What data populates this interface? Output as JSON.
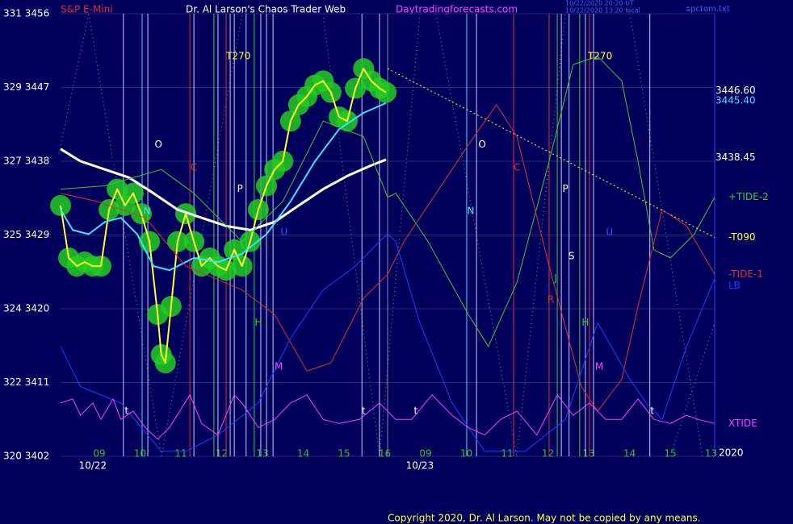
{
  "chart_data": {
    "type": "line",
    "title": "Dr. Al Larson's Chaos Trader Web",
    "symbol": "S&P E-Mini",
    "site": "Daytradingforecasts.com",
    "stamp": [
      "10/22/2020 20:20 UT",
      "10/22/2020 13:20 local"
    ],
    "file": "spctom.txt",
    "year": "2020",
    "copyright": "Copyright 2020, Dr. Al Larson. May not be copied by any means.",
    "background": "#00005c",
    "grid": true,
    "xlim": [
      0.05,
      16.09
    ],
    "ylim": [
      3402,
      3456
    ],
    "yticks": [
      {
        "value": 3456,
        "label": "331 3456"
      },
      {
        "value": 3447,
        "label": "329 3447"
      },
      {
        "value": 3438,
        "label": "327 3438"
      },
      {
        "value": 3429,
        "label": "325 3429"
      },
      {
        "value": 3420,
        "label": "324 3420"
      },
      {
        "value": 3411,
        "label": "322 3411"
      },
      {
        "value": 3402,
        "label": "320 3402"
      }
    ],
    "xticks": [
      {
        "value": 1,
        "label": "09"
      },
      {
        "value": 2,
        "label": "10"
      },
      {
        "value": 3,
        "label": "11"
      },
      {
        "value": 4,
        "label": "12"
      },
      {
        "value": 5,
        "label": "13"
      },
      {
        "value": 6,
        "label": "14"
      },
      {
        "value": 7,
        "label": "15"
      },
      {
        "value": 8,
        "label": "16"
      },
      {
        "value": 9,
        "label": "09"
      },
      {
        "value": 10,
        "label": "10"
      },
      {
        "value": 11,
        "label": "11"
      },
      {
        "value": 12,
        "label": "12"
      },
      {
        "value": 13,
        "label": "13"
      },
      {
        "value": 14,
        "label": "14"
      },
      {
        "value": 15,
        "label": "15"
      },
      {
        "value": 16,
        "label": "13"
      }
    ],
    "dates": [
      {
        "label": "10/22",
        "x": 0.84
      },
      {
        "label": "10/23",
        "x": 8.86
      }
    ],
    "price_labels": [
      {
        "value": 3446.6,
        "label": "3446.60",
        "color": "#ffffff"
      },
      {
        "value": 3445.4,
        "label": "3445.40",
        "color": "#40e0ff"
      },
      {
        "value": 3438.45,
        "label": "3438.45",
        "color": "#ffffff"
      }
    ],
    "vlines": [
      {
        "x": 1.59,
        "color": "#c8c8ff"
      },
      {
        "x": 2.05,
        "color": "#40e0ff"
      },
      {
        "x": 2.19,
        "color": "#c8c8ff"
      },
      {
        "x": 3.22,
        "color": "#e03030"
      },
      {
        "x": 3.32,
        "color": "#c8c8ff"
      },
      {
        "x": 3.81,
        "color": "#30d030"
      },
      {
        "x": 3.91,
        "color": "#c8c8ff"
      },
      {
        "x": 4.11,
        "color": "#e03030"
      },
      {
        "x": 4.21,
        "color": "#c8c8ff"
      },
      {
        "x": 4.31,
        "color": "#c8c8ff"
      },
      {
        "x": 4.6,
        "color": "#c8c8ff"
      },
      {
        "x": 4.8,
        "color": "#30d030"
      },
      {
        "x": 4.96,
        "color": "#c8c8ff"
      },
      {
        "x": 5.1,
        "color": "#c8c8ff"
      },
      {
        "x": 5.26,
        "color": "#c8c8ff"
      },
      {
        "x": 7.44,
        "color": "#c8c8ff"
      },
      {
        "x": 7.87,
        "color": "#c8c8ff"
      },
      {
        "x": 8.07,
        "color": "#8888aa"
      },
      {
        "x": 10.01,
        "color": "#40e0ff"
      },
      {
        "x": 10.25,
        "color": "#c8c8ff"
      },
      {
        "x": 11.16,
        "color": "#e03030"
      },
      {
        "x": 12.03,
        "color": "#e03030"
      },
      {
        "x": 12.23,
        "color": "#30d030"
      },
      {
        "x": 12.33,
        "color": "#c8c8ff"
      },
      {
        "x": 12.52,
        "color": "#c8c8ff"
      },
      {
        "x": 12.78,
        "color": "#30d030"
      },
      {
        "x": 12.92,
        "color": "#c8c8ff"
      },
      {
        "x": 13.02,
        "color": "#e03030"
      },
      {
        "x": 13.12,
        "color": "#c8c8ff"
      },
      {
        "x": 14.5,
        "color": "#c8c8ff"
      }
    ],
    "annotations": [
      {
        "text": "T270",
        "x": 4.41,
        "y": 3450.8,
        "color": "#ffff40"
      },
      {
        "text": "T270",
        "x": 13.28,
        "y": 3450.8,
        "color": "#ffff40"
      },
      {
        "text": "O",
        "x": 2.45,
        "y": 3440.0,
        "color": "#ffffff"
      },
      {
        "text": "O",
        "x": 10.39,
        "y": 3440.0,
        "color": "#ffffff"
      },
      {
        "text": "C",
        "x": 3.32,
        "y": 3437.2,
        "color": "#e03030"
      },
      {
        "text": "C",
        "x": 11.24,
        "y": 3437.2,
        "color": "#e03030"
      },
      {
        "text": "P",
        "x": 4.45,
        "y": 3434.6,
        "color": "#ffffff"
      },
      {
        "text": "P",
        "x": 12.43,
        "y": 3434.6,
        "color": "#ffffff"
      },
      {
        "text": "N",
        "x": 2.17,
        "y": 3431.9,
        "color": "#40e0ff"
      },
      {
        "text": "N",
        "x": 10.11,
        "y": 3431.9,
        "color": "#40e0ff"
      },
      {
        "text": "U",
        "x": 5.53,
        "y": 3429.3,
        "color": "#3050ff"
      },
      {
        "text": "U",
        "x": 13.51,
        "y": 3429.3,
        "color": "#3050ff"
      },
      {
        "text": "H",
        "x": 4.9,
        "y": 3418.3,
        "color": "#30d030"
      },
      {
        "text": "H",
        "x": 12.92,
        "y": 3418.3,
        "color": "#30d030"
      },
      {
        "text": "M",
        "x": 5.4,
        "y": 3412.9,
        "color": "#ff40ff"
      },
      {
        "text": "M",
        "x": 13.26,
        "y": 3412.9,
        "color": "#ff40ff"
      },
      {
        "text": "S",
        "x": 12.58,
        "y": 3426.4,
        "color": "#ffffff"
      },
      {
        "text": "J",
        "x": 12.19,
        "y": 3423.7,
        "color": "#30d030"
      },
      {
        "text": "R",
        "x": 12.07,
        "y": 3421.1,
        "color": "#e03030"
      },
      {
        "text": "t",
        "x": 1.67,
        "y": 3407.5,
        "color": "#ffffff"
      },
      {
        "text": "t",
        "x": 7.48,
        "y": 3407.5,
        "color": "#ffffff"
      },
      {
        "text": "t",
        "x": 8.76,
        "y": 3407.5,
        "color": "#ffffff"
      },
      {
        "text": "t",
        "x": 14.56,
        "y": 3407.5,
        "color": "#ffffff"
      }
    ],
    "series": [
      {
        "color": "#ffff30",
        "halo": "#22cc22",
        "width": 2,
        "x": [
          0.05,
          0.25,
          0.45,
          0.64,
          0.84,
          1.04,
          1.24,
          1.44,
          1.63,
          1.83,
          2.03,
          2.23,
          2.43,
          2.52,
          2.62,
          2.76,
          2.92,
          3.12,
          3.32,
          3.51,
          3.71,
          3.91,
          4.11,
          4.31,
          4.5,
          4.7,
          4.9,
          5.1,
          5.3,
          5.5,
          5.69,
          5.89,
          6.09,
          6.29,
          6.49,
          6.68,
          6.88,
          7.08,
          7.28,
          7.48,
          7.67,
          7.87,
          8.03
        ],
        "values": [
          3432.6,
          3426.2,
          3425.2,
          3425.7,
          3425.2,
          3425.2,
          3432.1,
          3434.6,
          3432.6,
          3434.1,
          3431.6,
          3428.2,
          3419.3,
          3414.4,
          3413.4,
          3420.3,
          3428.2,
          3431.6,
          3428.2,
          3425.2,
          3426.2,
          3425.2,
          3424.7,
          3427.2,
          3425.2,
          3428.2,
          3432.1,
          3435.0,
          3437.0,
          3438.0,
          3442.9,
          3444.9,
          3445.9,
          3447.3,
          3447.8,
          3446.4,
          3443.4,
          3442.9,
          3446.9,
          3449.3,
          3447.8,
          3446.9,
          3446.4
        ]
      },
      {
        "color": "#ffffff",
        "width": 3,
        "x": [
          0.05,
          0.54,
          1.14,
          1.73,
          2.33,
          2.92,
          3.51,
          4.11,
          4.7,
          5.3,
          5.89,
          6.49,
          7.08,
          7.67,
          8.03
        ],
        "values": [
          3439.5,
          3438.0,
          3437.0,
          3436.0,
          3434.1,
          3432.1,
          3431.1,
          3430.1,
          3429.6,
          3430.6,
          3432.6,
          3434.6,
          3436.2,
          3437.5,
          3438.2
        ]
      },
      {
        "color": "#40e0ff",
        "width": 2,
        "x": [
          0.05,
          0.35,
          0.74,
          1.14,
          1.53,
          1.93,
          2.33,
          2.72,
          3.32,
          3.91,
          4.5,
          5.1,
          5.69,
          6.29,
          6.88,
          7.48,
          8.03
        ],
        "values": [
          3432.1,
          3429.6,
          3429.1,
          3430.6,
          3431.1,
          3429.1,
          3425.2,
          3424.7,
          3426.2,
          3425.7,
          3426.7,
          3429.1,
          3433.1,
          3438.0,
          3441.9,
          3443.9,
          3445.1
        ]
      },
      {
        "name": "+TIDE-2",
        "color": "#30d030",
        "width": 1,
        "x": [
          0.05,
          1.14,
          2.52,
          3.32,
          4.5,
          5.5,
          6.49,
          7.48,
          8.07,
          8.27,
          9.06,
          10.05,
          10.54,
          11.24,
          12.03,
          12.62,
          13.22,
          13.81,
          14.21,
          14.6,
          15.0,
          15.59,
          16.09
        ],
        "values": [
          3434.6,
          3435.0,
          3437.0,
          3434.1,
          3428.2,
          3433.1,
          3442.9,
          3441.0,
          3433.6,
          3434.1,
          3428.2,
          3419.3,
          3415.4,
          3423.2,
          3438.0,
          3449.8,
          3450.8,
          3447.8,
          3438.0,
          3427.2,
          3426.2,
          3429.1,
          3433.6
        ]
      },
      {
        "name": "-T090",
        "color": "#ffff30",
        "width": 1,
        "style": "dotted",
        "x": [
          8.07,
          16.09
        ],
        "values": [
          3449.3,
          3428.7
        ]
      },
      {
        "name": "-TIDE-1",
        "color": "#e03030",
        "width": 1,
        "x": [
          0.05,
          0.94,
          2.13,
          3.12,
          4.5,
          5.3,
          6.09,
          6.68,
          7.48,
          8.07,
          8.47,
          9.26,
          10.05,
          10.74,
          11.24,
          12.03,
          12.82,
          13.22,
          13.81,
          14.21,
          14.8,
          15.4,
          16.09
        ],
        "values": [
          3434.1,
          3433.1,
          3431.1,
          3425.2,
          3422.3,
          3419.3,
          3412.4,
          3413.4,
          3421.3,
          3424.2,
          3428.2,
          3434.1,
          3440.0,
          3444.9,
          3441.0,
          3425.2,
          3410.5,
          3407.5,
          3411.4,
          3420.3,
          3432.1,
          3430.1,
          3424.2
        ]
      },
      {
        "name": "LB",
        "color": "#2040ff",
        "width": 1,
        "x": [
          0.05,
          0.54,
          1.53,
          2.52,
          3.12,
          3.91,
          4.9,
          5.69,
          6.49,
          7.28,
          7.87,
          8.07,
          8.27,
          8.86,
          9.65,
          10.45,
          11.44,
          12.43,
          13.22,
          14.01,
          14.41,
          14.8,
          15.4,
          16.09
        ],
        "values": [
          3415.4,
          3410.5,
          3408.5,
          3402.6,
          3402.6,
          3404.6,
          3408.5,
          3416.4,
          3422.3,
          3425.2,
          3428.2,
          3429.1,
          3428.2,
          3418.3,
          3408.5,
          3402.6,
          3402.6,
          3406.5,
          3418.3,
          3411.4,
          3408.5,
          3406.5,
          3415.4,
          3423.7
        ]
      },
      {
        "name": "XTIDE",
        "color": "#ff40ff",
        "width": 1,
        "x": [
          0.05,
          0.35,
          0.54,
          0.84,
          1.04,
          1.34,
          1.53,
          1.83,
          2.13,
          2.43,
          2.72,
          3.22,
          3.51,
          3.91,
          4.31,
          4.5,
          4.9,
          5.3,
          5.69,
          6.09,
          6.49,
          6.88,
          7.38,
          7.87,
          8.27,
          8.66,
          9.16,
          9.65,
          10.05,
          10.45,
          10.84,
          11.24,
          11.73,
          12.23,
          12.62,
          13.02,
          13.42,
          13.81,
          14.21,
          14.6,
          15.0,
          15.4,
          15.69,
          16.09
        ],
        "values": [
          3408.5,
          3409.0,
          3407.0,
          3408.5,
          3406.5,
          3409.0,
          3406.5,
          3407.5,
          3405.5,
          3404.1,
          3405.5,
          3409.5,
          3406.0,
          3404.6,
          3409.5,
          3408.5,
          3405.5,
          3406.5,
          3408.5,
          3409.5,
          3406.5,
          3406.0,
          3406.5,
          3408.5,
          3406.5,
          3406.5,
          3409.5,
          3407.0,
          3405.5,
          3404.6,
          3406.5,
          3407.5,
          3404.6,
          3409.5,
          3407.0,
          3408.5,
          3406.5,
          3406.5,
          3409.0,
          3406.5,
          3406.0,
          3407.0,
          3406.5,
          3406.0
        ]
      }
    ]
  }
}
